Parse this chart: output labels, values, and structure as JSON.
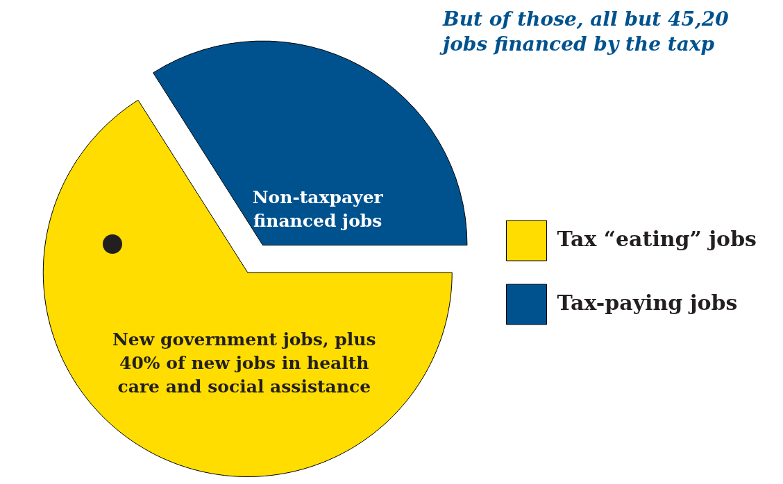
{
  "chart_data": {
    "type": "pie",
    "categories": [
      "Tax “eating” jobs",
      "Tax-paying jobs"
    ],
    "values": [
      66,
      34
    ],
    "colors": [
      "#ffdd00",
      "#00528f"
    ],
    "legend": "right",
    "annotations": [
      "New government jobs, plus 40% of new jobs in health care and social assistance",
      "Non-taxpayer financed jobs",
      "But of those, all but 45,20 jobs financed by the taxp"
    ]
  }
}
